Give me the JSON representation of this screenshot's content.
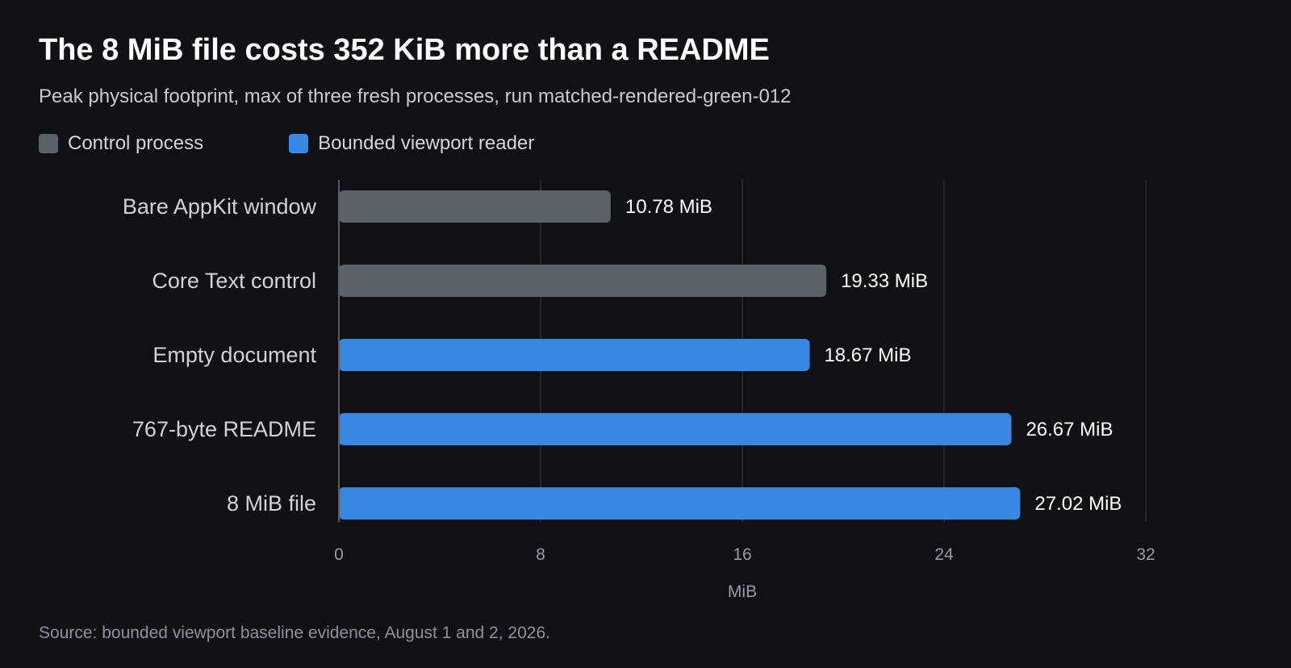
{
  "header": {
    "title": "The 8 MiB file costs 352 KiB more than a README",
    "subtitle": "Peak physical footprint, max of three fresh processes, run matched-rendered-green-012"
  },
  "legend": {
    "placement": "top-left",
    "items": [
      {
        "label": "Control process",
        "color": "#5b6169"
      },
      {
        "label": "Bounded viewport reader",
        "color": "#3787e3"
      }
    ]
  },
  "chart_data": {
    "type": "bar",
    "orientation": "horizontal",
    "title": "The 8 MiB file costs 352 KiB more than a README",
    "subtitle": "Peak physical footprint, max of three fresh processes, run matched-rendered-green-012",
    "xlabel": "MiB",
    "ylabel": "",
    "xlim": [
      0,
      32
    ],
    "ticks": [
      0,
      8,
      16,
      24,
      32
    ],
    "grid": true,
    "legend_placement": "top-left",
    "categories": [
      "Bare AppKit window",
      "Core Text control",
      "Empty document",
      "767-byte README",
      "8 MiB file"
    ],
    "values": [
      10.78,
      19.33,
      18.67,
      26.67,
      27.02
    ],
    "value_labels": [
      "10.78 MiB",
      "19.33 MiB",
      "18.67 MiB",
      "26.67 MiB",
      "27.02 MiB"
    ],
    "groups": [
      "Control process",
      "Control process",
      "Bounded viewport reader",
      "Bounded viewport reader",
      "Bounded viewport reader"
    ],
    "colors": {
      "Control process": "#5b6169",
      "Bounded viewport reader": "#3787e3",
      "background": "#0f1115",
      "gridline": "#2a2e35",
      "axis": "#5a5f67"
    }
  },
  "footer": {
    "source": "Source: bounded viewport baseline evidence, August 1 and 2, 2026."
  }
}
